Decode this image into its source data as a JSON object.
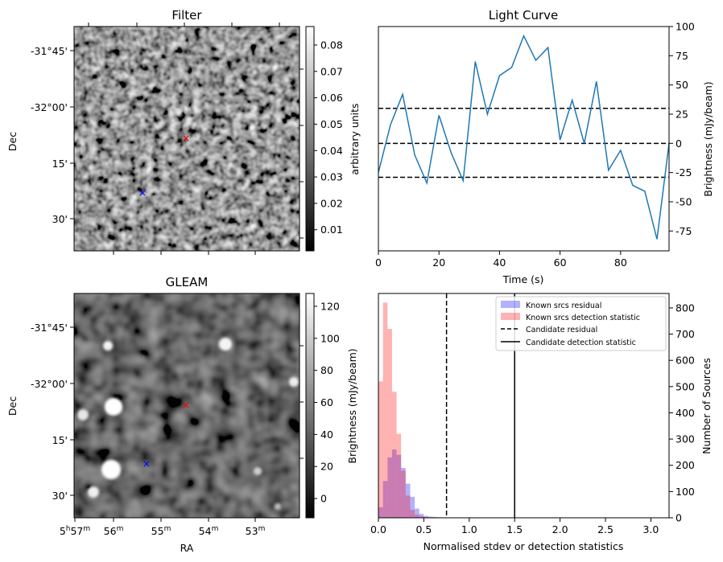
{
  "panels": {
    "filter": {
      "title": "Filter",
      "ylabel": "Dec",
      "dec_ticks": [
        "-31°45'",
        "-32°00'",
        "15'",
        "30'"
      ],
      "colorbar": {
        "label": "arbitrary units",
        "ticks": [
          "0.08",
          "0.07",
          "0.06",
          "0.05",
          "0.04",
          "0.03",
          "0.02",
          "0.01"
        ],
        "range": [
          0.002,
          0.087
        ]
      },
      "markers": {
        "red_color": "#ff0000",
        "blue_color": "#0000ff"
      }
    },
    "gleam": {
      "title": "GLEAM",
      "ylabel": "Dec",
      "xlabel": "RA",
      "dec_ticks": [
        "-31°45'",
        "-32°00'",
        "15'",
        "30'"
      ],
      "ra_ticks": [
        {
          "h": "5",
          "m": "57",
          "sup_h": "h",
          "sup_m": "m"
        },
        {
          "h": "",
          "m": "56",
          "sup_h": "",
          "sup_m": "m"
        },
        {
          "h": "",
          "m": "55",
          "sup_h": "",
          "sup_m": "m"
        },
        {
          "h": "",
          "m": "54",
          "sup_h": "",
          "sup_m": "m"
        },
        {
          "h": "",
          "m": "53",
          "sup_h": "",
          "sup_m": "m"
        }
      ],
      "colorbar": {
        "label": "Brightness (mJy/beam)",
        "ticks": [
          "120",
          "100",
          "80",
          "60",
          "40",
          "20",
          "0"
        ],
        "range": [
          -12,
          128
        ]
      }
    }
  },
  "chart_data": [
    {
      "type": "line",
      "title": "Light Curve",
      "xlabel": "Time (s)",
      "ylabel": "Brightness (mJy/beam)",
      "xlim": [
        0,
        96
      ],
      "ylim": [
        -92,
        100
      ],
      "xticks": [
        0,
        20,
        40,
        60,
        80
      ],
      "yticks": [
        100,
        75,
        50,
        25,
        0,
        -25,
        -50,
        -75
      ],
      "x": [
        0,
        4,
        8,
        12,
        16,
        20,
        24,
        28,
        32,
        36,
        40,
        44,
        48,
        52,
        56,
        60,
        64,
        68,
        72,
        76,
        80,
        84,
        88,
        92,
        96
      ],
      "series": [
        {
          "color": "#1f77b4",
          "values": [
            -25,
            16,
            42,
            -10,
            -34,
            24,
            -8,
            -32,
            70,
            25,
            58,
            65,
            92,
            71,
            82,
            3,
            37,
            0,
            53,
            -23,
            -6,
            -36,
            -41,
            -82,
            0
          ]
        }
      ],
      "hlines": [
        {
          "y": 30,
          "style": "dashed",
          "color": "#000000"
        },
        {
          "y": 0,
          "style": "dashed",
          "color": "#000000"
        },
        {
          "y": -29,
          "style": "dashed",
          "color": "#000000"
        }
      ]
    },
    {
      "type": "histogram",
      "xlabel": "Normalised stdev or detection statistics",
      "ylabel": "Number of Sources",
      "xlim": [
        0,
        3.2
      ],
      "ylim": [
        0,
        855
      ],
      "xticks": [
        "0.0",
        "0.5",
        "1.0",
        "1.5",
        "2.0",
        "2.5",
        "3.0"
      ],
      "yticks": [
        0,
        100,
        200,
        300,
        400,
        500,
        600,
        700,
        800
      ],
      "bin_width": 0.05,
      "legend_position": "upper right",
      "series": [
        {
          "name": "Known srcs residual",
          "color": "#0000ff",
          "opacity": 0.3,
          "bin_start": 0.0,
          "counts": [
            40,
            140,
            230,
            260,
            240,
            190,
            130,
            80,
            35,
            15,
            7,
            4,
            3,
            2,
            1,
            1,
            0,
            0,
            0,
            0,
            2,
            1,
            0,
            0
          ]
        },
        {
          "name": "Known srcs detection statistic",
          "color": "#ff0000",
          "opacity": 0.3,
          "bin_start": 0.0,
          "counts": [
            520,
            820,
            720,
            480,
            320,
            180,
            85,
            30,
            12,
            6,
            3,
            2,
            2,
            1,
            1,
            1,
            0,
            1,
            0,
            0
          ]
        }
      ],
      "vlines": [
        {
          "name": "Candidate residual",
          "x": 0.75,
          "style": "dashed",
          "color": "#000000"
        },
        {
          "name": "Candidate detection statistic",
          "x": 1.5,
          "style": "solid",
          "color": "#000000"
        }
      ]
    }
  ]
}
